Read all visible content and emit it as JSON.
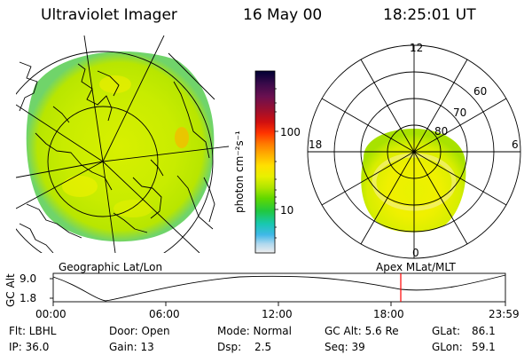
{
  "header": {
    "instrument": "Ultraviolet Imager",
    "date": "16 May 00",
    "time": "18:25:01 UT"
  },
  "geographic_panel": {
    "label": "Geographic Lat/Lon"
  },
  "apex_panel": {
    "label": "Apex MLat/MLT",
    "mlt_labels": [
      "12",
      "18",
      "6",
      "0"
    ],
    "mlat_labels": [
      "60",
      "70",
      "80"
    ]
  },
  "colorbar": {
    "unit_label": "photon cm⁻²s⁻¹",
    "tick_labels": [
      "100",
      "10"
    ],
    "colors": [
      "#000033",
      "#3a0a4a",
      "#6a1050",
      "#a0102c",
      "#d01010",
      "#ff3300",
      "#ff7a00",
      "#ffb000",
      "#ffe000",
      "#e8f000",
      "#b0e600",
      "#60d800",
      "#20c840",
      "#18c8b0",
      "#40b8e8",
      "#b0d8ee",
      "#eeeeee"
    ]
  },
  "timeline": {
    "y_label": "GC Alt",
    "y_ticks": [
      "9.0",
      "1.8"
    ],
    "x_ticks": [
      "00:00",
      "06:00",
      "12:00",
      "18:00",
      "23:59"
    ],
    "current_marker_color": "#ff0000"
  },
  "status": {
    "filter": "Flt: LBHL",
    "ip": "IP: 36.0",
    "door": "Door: Open",
    "gain": "Gain: 13",
    "mode": "Mode: Normal",
    "dsp_label": "Dsp:",
    "dsp_value": "2.5",
    "gc_alt": "GC Alt: 5.6 Re",
    "seq": "Seq: 39",
    "glat": "GLat:",
    "glat_value": "86.1",
    "glon": "GLon:",
    "glon_value": "59.1"
  }
}
